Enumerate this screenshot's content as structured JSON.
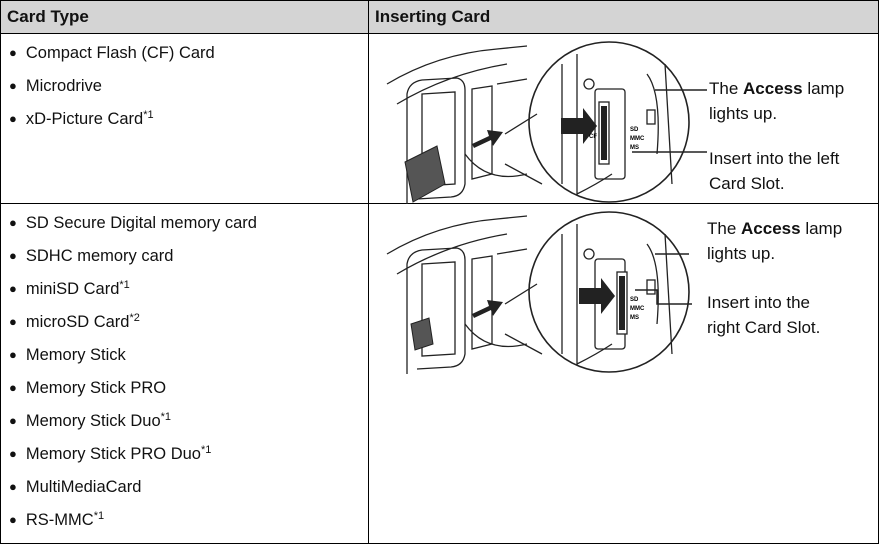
{
  "table": {
    "headers": [
      "Card Type",
      "Inserting Card"
    ],
    "rows": [
      {
        "cards": [
          {
            "name": "Compact Flash (CF) Card"
          },
          {
            "name": "Microdrive"
          },
          {
            "name": "xD-Picture Card",
            "note": "*1"
          }
        ],
        "callouts": {
          "lamp": {
            "before": "The",
            "bold": "Access",
            "after": "lamp lights up."
          },
          "slot": "Insert into the left Card Slot."
        },
        "slot_labels": [
          "CF",
          "SD",
          "MMC",
          "MS"
        ]
      },
      {
        "cards": [
          {
            "name": "SD Secure Digital memory card"
          },
          {
            "name": "SDHC memory card"
          },
          {
            "name": "miniSD Card",
            "note": "*1"
          },
          {
            "name": "microSD Card",
            "note": "*2"
          },
          {
            "name": "Memory Stick"
          },
          {
            "name": "Memory Stick PRO"
          },
          {
            "name": "Memory Stick Duo",
            "note": "*1"
          },
          {
            "name": "Memory Stick PRO Duo",
            "note": "*1"
          },
          {
            "name": "MultiMediaCard"
          },
          {
            "name": "RS-MMC",
            "note": "*1"
          }
        ],
        "callouts": {
          "lamp": {
            "before": "The",
            "bold": "Access",
            "after": "lamp lights up."
          },
          "slot": "Insert into the right Card Slot."
        },
        "slot_labels": [
          "SD",
          "MMC",
          "MS"
        ]
      }
    ]
  }
}
